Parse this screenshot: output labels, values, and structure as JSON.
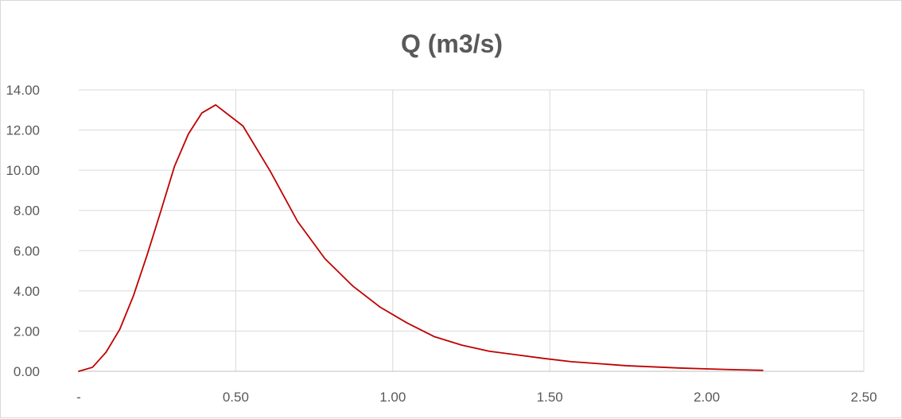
{
  "chart_data": {
    "type": "line",
    "title": "Q (m3/s)",
    "xlabel": "",
    "ylabel": "",
    "xlim": [
      0,
      2.5
    ],
    "ylim": [
      0,
      14
    ],
    "x_ticks": [
      0,
      0.5,
      1.0,
      1.5,
      2.0,
      2.5
    ],
    "x_tick_labels": [
      "-",
      "0.50",
      "1.00",
      "1.50",
      "2.00",
      "2.50"
    ],
    "y_ticks": [
      0,
      2,
      4,
      6,
      8,
      10,
      12,
      14
    ],
    "y_tick_labels": [
      "0.00",
      "2.00",
      "4.00",
      "6.00",
      "8.00",
      "10.00",
      "12.00",
      "14.00"
    ],
    "grid": true,
    "legend": "none",
    "line_color": "#c00000",
    "series": [
      {
        "x": [
          0.0,
          0.044,
          0.087,
          0.131,
          0.174,
          0.218,
          0.262,
          0.305,
          0.349,
          0.392,
          0.436,
          0.523,
          0.61,
          0.697,
          0.784,
          0.872,
          0.959,
          1.046,
          1.133,
          1.22,
          1.307,
          1.394,
          1.481,
          1.568,
          1.656,
          1.743,
          1.83,
          1.917,
          2.004,
          2.091,
          2.178
        ],
        "y": [
          0.0,
          0.2,
          0.95,
          2.1,
          3.75,
          5.8,
          8.0,
          10.2,
          11.8,
          12.85,
          13.25,
          12.2,
          9.95,
          7.45,
          5.6,
          4.25,
          3.2,
          2.4,
          1.72,
          1.3,
          1.0,
          0.82,
          0.64,
          0.48,
          0.38,
          0.28,
          0.22,
          0.16,
          0.12,
          0.08,
          0.05
        ]
      }
    ]
  }
}
